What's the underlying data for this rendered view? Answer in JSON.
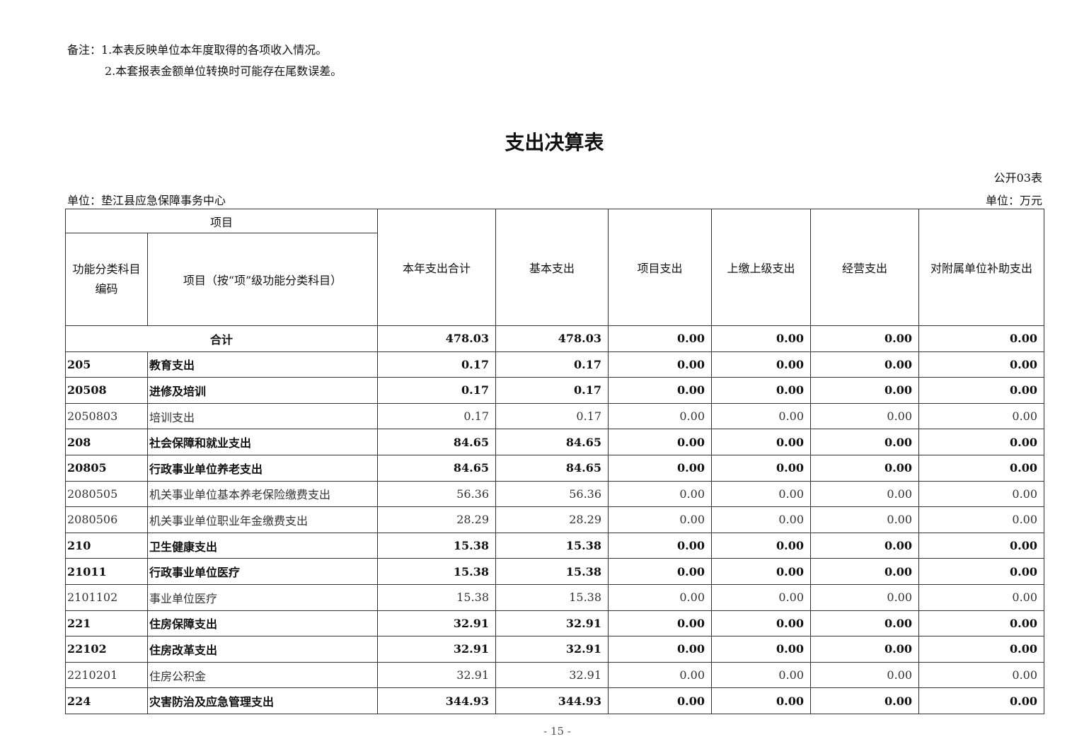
{
  "notes": [
    "备注：1.本表反映单位本年度取得的各项收入情况。",
    "2.本套报表金额单位转换时可能存在尾数误差。"
  ],
  "title": "支出决算表",
  "table_no": "公开03表",
  "unit_org": "单位：垫江县应急保障事务中心",
  "unit_money": "单位：万元",
  "headers": {
    "item": "项目",
    "code": "功能分类科目编码",
    "name": "项目（按“项”级功能分类科目）",
    "cols": [
      "本年支出合计",
      "基本支出",
      "项目支出",
      "上缴上级支出",
      "经营支出",
      "对附属单位补助支出"
    ]
  },
  "total": {
    "label": "合计",
    "values": [
      "478.03",
      "478.03",
      "0.00",
      "0.00",
      "0.00",
      "0.00"
    ]
  },
  "rows": [
    {
      "code": "205",
      "name": "教育支出",
      "bold": true,
      "values": [
        "0.17",
        "0.17",
        "0.00",
        "0.00",
        "0.00",
        "0.00"
      ]
    },
    {
      "code": "20508",
      "name": "进修及培训",
      "bold": true,
      "values": [
        "0.17",
        "0.17",
        "0.00",
        "0.00",
        "0.00",
        "0.00"
      ]
    },
    {
      "code": "2050803",
      "name": "培训支出",
      "bold": false,
      "values": [
        "0.17",
        "0.17",
        "0.00",
        "0.00",
        "0.00",
        "0.00"
      ]
    },
    {
      "code": "208",
      "name": "社会保障和就业支出",
      "bold": true,
      "values": [
        "84.65",
        "84.65",
        "0.00",
        "0.00",
        "0.00",
        "0.00"
      ]
    },
    {
      "code": "20805",
      "name": "行政事业单位养老支出",
      "bold": true,
      "values": [
        "84.65",
        "84.65",
        "0.00",
        "0.00",
        "0.00",
        "0.00"
      ]
    },
    {
      "code": "2080505",
      "name": "机关事业单位基本养老保险缴费支出",
      "bold": false,
      "values": [
        "56.36",
        "56.36",
        "0.00",
        "0.00",
        "0.00",
        "0.00"
      ]
    },
    {
      "code": "2080506",
      "name": "机关事业单位职业年金缴费支出",
      "bold": false,
      "values": [
        "28.29",
        "28.29",
        "0.00",
        "0.00",
        "0.00",
        "0.00"
      ]
    },
    {
      "code": "210",
      "name": "卫生健康支出",
      "bold": true,
      "values": [
        "15.38",
        "15.38",
        "0.00",
        "0.00",
        "0.00",
        "0.00"
      ]
    },
    {
      "code": "21011",
      "name": "行政事业单位医疗",
      "bold": true,
      "values": [
        "15.38",
        "15.38",
        "0.00",
        "0.00",
        "0.00",
        "0.00"
      ]
    },
    {
      "code": "2101102",
      "name": "事业单位医疗",
      "bold": false,
      "values": [
        "15.38",
        "15.38",
        "0.00",
        "0.00",
        "0.00",
        "0.00"
      ]
    },
    {
      "code": "221",
      "name": "住房保障支出",
      "bold": true,
      "values": [
        "32.91",
        "32.91",
        "0.00",
        "0.00",
        "0.00",
        "0.00"
      ]
    },
    {
      "code": "22102",
      "name": "住房改革支出",
      "bold": true,
      "values": [
        "32.91",
        "32.91",
        "0.00",
        "0.00",
        "0.00",
        "0.00"
      ]
    },
    {
      "code": "2210201",
      "name": "住房公积金",
      "bold": false,
      "values": [
        "32.91",
        "32.91",
        "0.00",
        "0.00",
        "0.00",
        "0.00"
      ]
    },
    {
      "code": "224",
      "name": "灾害防治及应急管理支出",
      "bold": true,
      "values": [
        "344.93",
        "344.93",
        "0.00",
        "0.00",
        "0.00",
        "0.00"
      ]
    }
  ],
  "page_number": "- 15 -"
}
